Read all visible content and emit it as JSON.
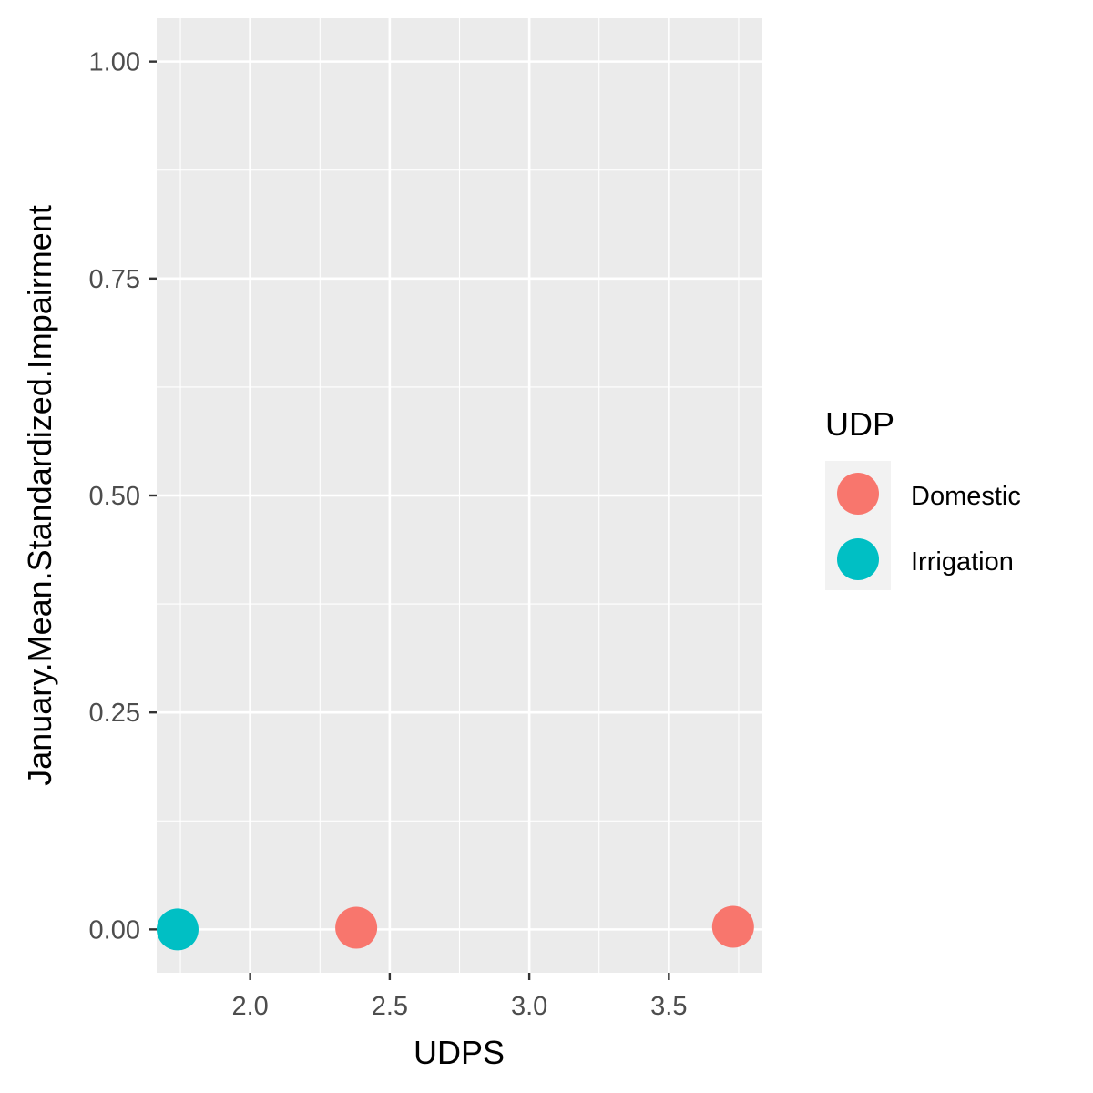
{
  "chart_data": {
    "type": "scatter",
    "title": "",
    "xlabel": "UDPS",
    "ylabel": "January.Mean.Standardized.Impairment",
    "xlim": [
      1.665,
      3.835
    ],
    "ylim": [
      -0.05,
      1.05
    ],
    "x_ticks": [
      2.0,
      2.5,
      3.0,
      3.5
    ],
    "x_tick_labels": [
      "2.0",
      "2.5",
      "3.0",
      "3.5"
    ],
    "y_ticks": [
      0.0,
      0.25,
      0.5,
      0.75,
      1.0
    ],
    "y_tick_labels": [
      "0.00",
      "0.25",
      "0.50",
      "0.75",
      "1.00"
    ],
    "grid": true,
    "legend": {
      "title": "UDP",
      "placement": "right",
      "entries": [
        {
          "name": "Domestic",
          "color": "#F8766D"
        },
        {
          "name": "Irrigation",
          "color": "#00BFC4"
        }
      ]
    },
    "series": [
      {
        "name": "Domestic",
        "color": "#F8766D",
        "points": [
          {
            "x": 2.38,
            "y": 0.002
          },
          {
            "x": 3.73,
            "y": 0.003
          }
        ]
      },
      {
        "name": "Irrigation",
        "color": "#00BFC4",
        "points": [
          {
            "x": 1.74,
            "y": 0.0
          }
        ]
      }
    ],
    "colors": {
      "panel_background": "#EBEBEB",
      "grid_major": "#FFFFFF",
      "tick_label": "#4D4D4D",
      "axis_tick": "#333333"
    }
  }
}
